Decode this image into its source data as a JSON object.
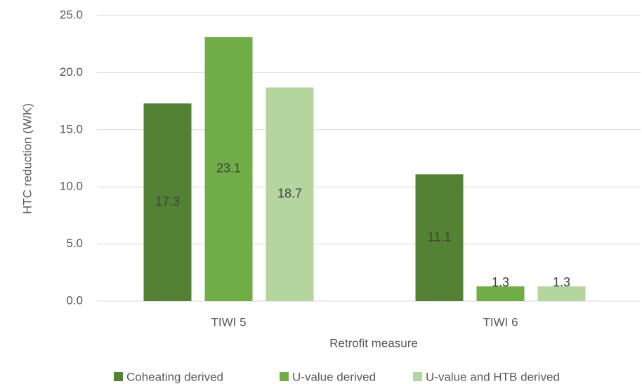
{
  "chart_data": {
    "type": "bar",
    "x_label": "Retrofit measure",
    "y_label": "HTC reduction (W/K)",
    "categories": [
      "TIWI 5",
      "TIWI 6"
    ],
    "series": [
      {
        "name": "Coheating derived",
        "color": "#548235",
        "values": [
          17.3,
          11.1
        ]
      },
      {
        "name": "U-value derived",
        "color": "#70ad47",
        "values": [
          23.1,
          1.3
        ]
      },
      {
        "name": "U-value and HTB derived",
        "color": "#b4d5a0",
        "values": [
          18.7,
          1.3
        ]
      }
    ],
    "ylim": [
      0,
      25
    ],
    "yticks": [
      {
        "value": 0,
        "label": "0.0"
      },
      {
        "value": 5,
        "label": "5.0"
      },
      {
        "value": 10,
        "label": "10.0"
      },
      {
        "value": 15,
        "label": "15.0"
      },
      {
        "value": 20,
        "label": "20.0"
      },
      {
        "value": 25,
        "label": "25.0"
      }
    ],
    "grid": true
  }
}
